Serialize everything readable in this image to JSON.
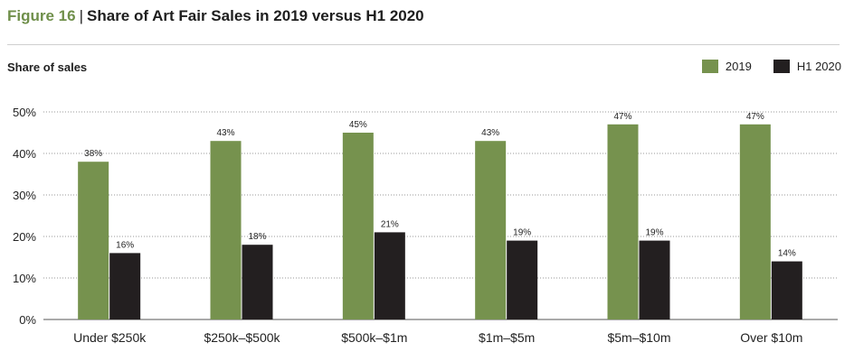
{
  "header": {
    "figure_number": "Figure 16",
    "separator": "|",
    "title": "Share of Art Fair Sales in 2019 versus H1 2020"
  },
  "chart_data": {
    "type": "bar",
    "title": "Share of Art Fair Sales in 2019 versus H1 2020",
    "ylabel": "Share of sales",
    "xlabel": "",
    "categories": [
      "Under $250k",
      "$250k–$500k",
      "$500k–$1m",
      "$1m–$5m",
      "$5m–$10m",
      "Over $10m"
    ],
    "series": [
      {
        "name": "2019",
        "color": "#76924e",
        "values": [
          38,
          43,
          45,
          43,
          47,
          47
        ]
      },
      {
        "name": "H1 2020",
        "color": "#231f20",
        "values": [
          16,
          18,
          21,
          19,
          19,
          14
        ]
      }
    ],
    "ylim": [
      0,
      50
    ],
    "yticks": [
      0,
      10,
      20,
      30,
      40,
      50
    ],
    "ytick_labels": [
      "0%",
      "10%",
      "20%",
      "30%",
      "40%",
      "50%"
    ],
    "data_labels": [
      [
        "38%",
        "43%",
        "45%",
        "43%",
        "47%",
        "47%"
      ],
      [
        "16%",
        "18%",
        "21%",
        "19%",
        "19%",
        "14%"
      ]
    ],
    "grid": true,
    "legend_position": "top-right"
  }
}
